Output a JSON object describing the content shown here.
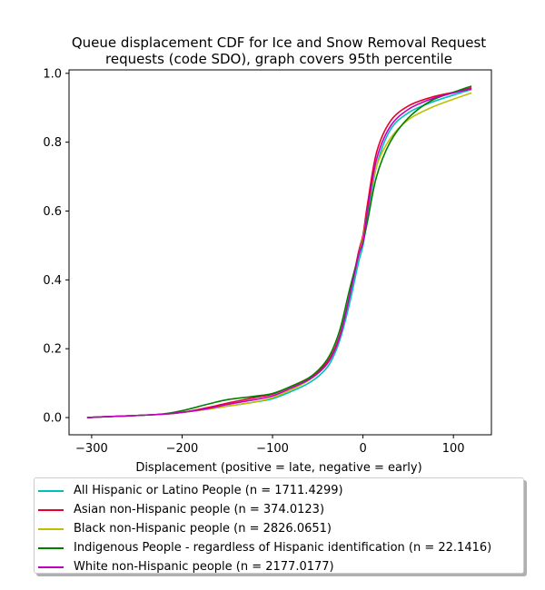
{
  "chart_data": {
    "type": "line",
    "title": "Queue displacement CDF for Ice and Snow Removal Request\nrequests (code SDO), graph covers 95th percentile",
    "xlabel": "Displacement (positive = late, negative = early)",
    "ylabel": "",
    "xlim": [
      -325,
      142
    ],
    "ylim": [
      -0.05,
      1.01
    ],
    "xticks": [
      -300,
      -200,
      -100,
      0,
      100
    ],
    "xtick_labels": [
      "−300",
      "−200",
      "−100",
      "0",
      "100"
    ],
    "yticks": [
      0.0,
      0.2,
      0.4,
      0.6,
      0.8,
      1.0
    ],
    "ytick_labels": [
      "0.0",
      "0.2",
      "0.4",
      "0.6",
      "0.8",
      "1.0"
    ],
    "grid": false,
    "legend_position": "below",
    "series": [
      {
        "name": "All Hispanic or Latino People (n = 1711.4299)",
        "color": "#00bfbf",
        "x": [
          -305,
          -280,
          -250,
          -220,
          -200,
          -170,
          -150,
          -120,
          -100,
          -80,
          -60,
          -45,
          -35,
          -25,
          -15,
          -5,
          0,
          5,
          15,
          30,
          50,
          75,
          100,
          120
        ],
        "y": [
          0.0,
          0.003,
          0.006,
          0.01,
          0.015,
          0.025,
          0.033,
          0.045,
          0.055,
          0.075,
          0.1,
          0.13,
          0.165,
          0.23,
          0.33,
          0.45,
          0.5,
          0.58,
          0.73,
          0.835,
          0.885,
          0.915,
          0.937,
          0.953
        ]
      },
      {
        "name": "Asian non-Hispanic people (n = 374.0123)",
        "color": "#e8002e",
        "x": [
          -305,
          -280,
          -250,
          -220,
          -200,
          -170,
          -150,
          -120,
          -100,
          -80,
          -60,
          -45,
          -35,
          -25,
          -15,
          -5,
          0,
          5,
          15,
          30,
          50,
          75,
          100,
          120
        ],
        "y": [
          0.0,
          0.003,
          0.006,
          0.01,
          0.015,
          0.03,
          0.042,
          0.058,
          0.068,
          0.09,
          0.115,
          0.145,
          0.18,
          0.245,
          0.35,
          0.48,
          0.53,
          0.62,
          0.77,
          0.86,
          0.905,
          0.93,
          0.945,
          0.958
        ]
      },
      {
        "name": "Black non-Hispanic people (n = 2826.0651)",
        "color": "#bfbf00",
        "x": [
          -305,
          -280,
          -250,
          -220,
          -200,
          -170,
          -150,
          -120,
          -100,
          -80,
          -60,
          -45,
          -35,
          -25,
          -15,
          -5,
          0,
          5,
          15,
          30,
          50,
          75,
          100,
          120
        ],
        "y": [
          0.0,
          0.003,
          0.006,
          0.01,
          0.015,
          0.025,
          0.033,
          0.045,
          0.058,
          0.08,
          0.108,
          0.14,
          0.175,
          0.24,
          0.35,
          0.47,
          0.52,
          0.6,
          0.73,
          0.81,
          0.865,
          0.9,
          0.925,
          0.943
        ]
      },
      {
        "name": "Indigenous People - regardless of Hispanic identification (n = 22.1416)",
        "color": "#008000",
        "x": [
          -305,
          -280,
          -250,
          -220,
          -200,
          -170,
          -150,
          -120,
          -100,
          -80,
          -60,
          -45,
          -35,
          -25,
          -15,
          -5,
          0,
          5,
          15,
          30,
          50,
          75,
          100,
          120
        ],
        "y": [
          0.0,
          0.003,
          0.006,
          0.011,
          0.02,
          0.04,
          0.052,
          0.062,
          0.07,
          0.09,
          0.115,
          0.15,
          0.19,
          0.26,
          0.37,
          0.47,
          0.51,
          0.57,
          0.7,
          0.8,
          0.87,
          0.92,
          0.945,
          0.963
        ]
      },
      {
        "name": "White non-Hispanic people (n = 2177.0177)",
        "color": "#bf00bf",
        "x": [
          -305,
          -280,
          -250,
          -220,
          -200,
          -170,
          -150,
          -120,
          -100,
          -80,
          -60,
          -45,
          -35,
          -25,
          -15,
          -5,
          0,
          5,
          15,
          30,
          50,
          75,
          100,
          120
        ],
        "y": [
          0.0,
          0.003,
          0.006,
          0.01,
          0.015,
          0.027,
          0.038,
          0.052,
          0.063,
          0.085,
          0.11,
          0.14,
          0.175,
          0.24,
          0.35,
          0.47,
          0.51,
          0.6,
          0.75,
          0.845,
          0.895,
          0.925,
          0.943,
          0.955
        ]
      }
    ]
  }
}
